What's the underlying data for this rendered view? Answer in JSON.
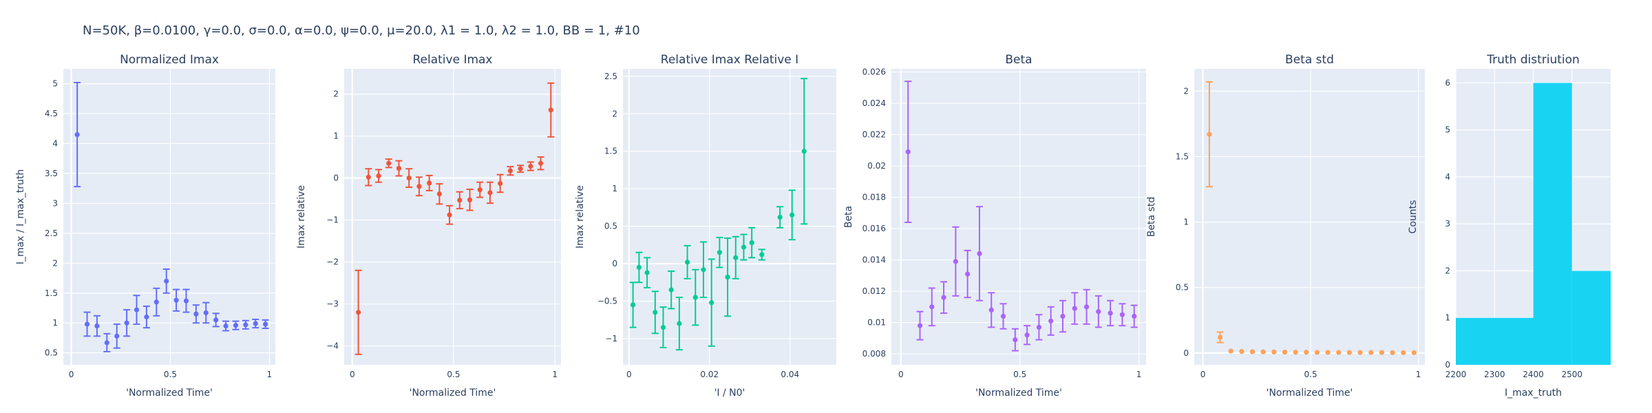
{
  "suptitle": "N=50K, β=0.0100, γ=0.0, σ=0.0,  α=0.0, ψ=0.0, μ=20.0, λ1 = 1.0, λ2 = 1.0, BB = 1, #10",
  "chart_data": [
    {
      "type": "scatter",
      "title": "Normalized Imax",
      "xlabel": "'Normalized Time'",
      "ylabel": "I_max / I_max_truth",
      "color": "#636efa",
      "xlim": [
        -0.04,
        1.03
      ],
      "ylim": [
        0.3,
        5.25
      ],
      "xticks": [
        0,
        0.5,
        1
      ],
      "xticklabels": [
        "0",
        "0.5",
        "1"
      ],
      "yticks": [
        0.5,
        1,
        1.5,
        2,
        2.5,
        3,
        3.5,
        4,
        4.5,
        5
      ],
      "yticklabels": [
        "0.5",
        "1",
        "1.5",
        "2",
        "2.5",
        "3",
        "3.5",
        "4",
        "4.5",
        "5"
      ],
      "points": [
        {
          "x": 0.03,
          "y": 4.15,
          "lo": 3.28,
          "hi": 5.02
        },
        {
          "x": 0.08,
          "y": 0.98,
          "lo": 0.78,
          "hi": 1.18
        },
        {
          "x": 0.13,
          "y": 0.95,
          "lo": 0.78,
          "hi": 1.12
        },
        {
          "x": 0.18,
          "y": 0.67,
          "lo": 0.52,
          "hi": 0.82
        },
        {
          "x": 0.23,
          "y": 0.78,
          "lo": 0.58,
          "hi": 0.98
        },
        {
          "x": 0.28,
          "y": 1.0,
          "lo": 0.78,
          "hi": 1.22
        },
        {
          "x": 0.33,
          "y": 1.22,
          "lo": 0.98,
          "hi": 1.46
        },
        {
          "x": 0.38,
          "y": 1.1,
          "lo": 0.92,
          "hi": 1.28
        },
        {
          "x": 0.43,
          "y": 1.35,
          "lo": 1.12,
          "hi": 1.58
        },
        {
          "x": 0.48,
          "y": 1.7,
          "lo": 1.5,
          "hi": 1.9
        },
        {
          "x": 0.53,
          "y": 1.38,
          "lo": 1.2,
          "hi": 1.56
        },
        {
          "x": 0.58,
          "y": 1.37,
          "lo": 1.18,
          "hi": 1.56
        },
        {
          "x": 0.63,
          "y": 1.15,
          "lo": 1.0,
          "hi": 1.3
        },
        {
          "x": 0.68,
          "y": 1.17,
          "lo": 1.0,
          "hi": 1.34
        },
        {
          "x": 0.73,
          "y": 1.05,
          "lo": 0.94,
          "hi": 1.16
        },
        {
          "x": 0.78,
          "y": 0.95,
          "lo": 0.87,
          "hi": 1.03
        },
        {
          "x": 0.83,
          "y": 0.96,
          "lo": 0.89,
          "hi": 1.03
        },
        {
          "x": 0.88,
          "y": 0.97,
          "lo": 0.9,
          "hi": 1.04
        },
        {
          "x": 0.93,
          "y": 0.99,
          "lo": 0.92,
          "hi": 1.06
        },
        {
          "x": 0.98,
          "y": 0.98,
          "lo": 0.91,
          "hi": 1.05
        }
      ]
    },
    {
      "type": "scatter",
      "title": "Relative Imax",
      "xlabel": "'Normalized Time'",
      "ylabel": "Imax relative",
      "color": "#ef553b",
      "xlim": [
        -0.04,
        1.03
      ],
      "ylim": [
        -4.45,
        2.6
      ],
      "xticks": [
        0,
        0.5,
        1
      ],
      "xticklabels": [
        "0",
        "0.5",
        "1"
      ],
      "yticks": [
        -4,
        -3,
        -2,
        -1,
        0,
        1,
        2
      ],
      "yticklabels": [
        "−4",
        "−3",
        "−2",
        "−1",
        "0",
        "1",
        "2"
      ],
      "points": [
        {
          "x": 0.03,
          "y": -3.2,
          "lo": -4.2,
          "hi": -2.2
        },
        {
          "x": 0.08,
          "y": 0.02,
          "lo": -0.18,
          "hi": 0.22
        },
        {
          "x": 0.13,
          "y": 0.05,
          "lo": -0.1,
          "hi": 0.2
        },
        {
          "x": 0.18,
          "y": 0.35,
          "lo": 0.25,
          "hi": 0.45
        },
        {
          "x": 0.23,
          "y": 0.23,
          "lo": 0.05,
          "hi": 0.41
        },
        {
          "x": 0.28,
          "y": 0.0,
          "lo": -0.22,
          "hi": 0.22
        },
        {
          "x": 0.33,
          "y": -0.2,
          "lo": -0.42,
          "hi": 0.02
        },
        {
          "x": 0.38,
          "y": -0.12,
          "lo": -0.3,
          "hi": 0.06
        },
        {
          "x": 0.43,
          "y": -0.38,
          "lo": -0.62,
          "hi": -0.14
        },
        {
          "x": 0.48,
          "y": -0.88,
          "lo": -1.1,
          "hi": -0.66
        },
        {
          "x": 0.53,
          "y": -0.53,
          "lo": -0.73,
          "hi": -0.33
        },
        {
          "x": 0.58,
          "y": -0.52,
          "lo": -0.77,
          "hi": -0.27
        },
        {
          "x": 0.63,
          "y": -0.28,
          "lo": -0.46,
          "hi": -0.1
        },
        {
          "x": 0.68,
          "y": -0.35,
          "lo": -0.6,
          "hi": -0.1
        },
        {
          "x": 0.73,
          "y": -0.13,
          "lo": -0.34,
          "hi": 0.08
        },
        {
          "x": 0.78,
          "y": 0.17,
          "lo": 0.07,
          "hi": 0.27
        },
        {
          "x": 0.83,
          "y": 0.22,
          "lo": 0.14,
          "hi": 0.3
        },
        {
          "x": 0.88,
          "y": 0.28,
          "lo": 0.18,
          "hi": 0.38
        },
        {
          "x": 0.93,
          "y": 0.35,
          "lo": 0.2,
          "hi": 0.5
        },
        {
          "x": 0.98,
          "y": 1.62,
          "lo": 0.98,
          "hi": 2.26
        }
      ]
    },
    {
      "type": "scatter",
      "title": "Relative Imax Relative I",
      "xlabel": "'I / N0'",
      "ylabel": "Imax relative",
      "color": "#00cc96",
      "xlim": [
        -0.0015,
        0.0515
      ],
      "ylim": [
        -1.35,
        2.6
      ],
      "xticks": [
        0,
        0.02,
        0.04
      ],
      "xticklabels": [
        "0",
        "0.02",
        "0.04"
      ],
      "yticks": [
        -1,
        -0.5,
        0,
        0.5,
        1,
        1.5,
        2,
        2.5
      ],
      "yticklabels": [
        "−1",
        "−0.5",
        "0",
        "0.5",
        "1",
        "1.5",
        "2",
        "2.5"
      ],
      "points": [
        {
          "x": 0.001,
          "y": -0.55,
          "lo": -0.85,
          "hi": -0.25
        },
        {
          "x": 0.0025,
          "y": -0.05,
          "lo": -0.25,
          "hi": 0.15
        },
        {
          "x": 0.0045,
          "y": -0.12,
          "lo": -0.32,
          "hi": 0.08
        },
        {
          "x": 0.0065,
          "y": -0.65,
          "lo": -0.93,
          "hi": -0.37
        },
        {
          "x": 0.0085,
          "y": -0.85,
          "lo": -1.12,
          "hi": -0.58
        },
        {
          "x": 0.0105,
          "y": -0.35,
          "lo": -0.6,
          "hi": -0.1
        },
        {
          "x": 0.0125,
          "y": -0.8,
          "lo": -1.15,
          "hi": -0.45
        },
        {
          "x": 0.0145,
          "y": 0.02,
          "lo": -0.2,
          "hi": 0.24
        },
        {
          "x": 0.0165,
          "y": -0.45,
          "lo": -0.82,
          "hi": -0.08
        },
        {
          "x": 0.0185,
          "y": -0.08,
          "lo": -0.45,
          "hi": 0.29
        },
        {
          "x": 0.0205,
          "y": -0.52,
          "lo": -1.1,
          "hi": 0.06
        },
        {
          "x": 0.0225,
          "y": 0.15,
          "lo": -0.05,
          "hi": 0.35
        },
        {
          "x": 0.0245,
          "y": -0.18,
          "lo": -0.7,
          "hi": 0.34
        },
        {
          "x": 0.0265,
          "y": 0.08,
          "lo": -0.2,
          "hi": 0.36
        },
        {
          "x": 0.0285,
          "y": 0.22,
          "lo": 0.05,
          "hi": 0.39
        },
        {
          "x": 0.0305,
          "y": 0.28,
          "lo": 0.08,
          "hi": 0.48
        },
        {
          "x": 0.033,
          "y": 0.12,
          "lo": 0.05,
          "hi": 0.19
        },
        {
          "x": 0.0375,
          "y": 0.62,
          "lo": 0.48,
          "hi": 0.76
        },
        {
          "x": 0.0405,
          "y": 0.65,
          "lo": 0.32,
          "hi": 0.98
        },
        {
          "x": 0.0435,
          "y": 1.5,
          "lo": 0.53,
          "hi": 2.47
        }
      ]
    },
    {
      "type": "scatter",
      "title": "Beta",
      "xlabel": "'Normalized Time'",
      "ylabel": "Beta",
      "color": "#ab63fa",
      "xlim": [
        -0.04,
        1.03
      ],
      "ylim": [
        0.0073,
        0.0262
      ],
      "xticks": [
        0,
        0.5,
        1
      ],
      "xticklabels": [
        "0",
        "0.5",
        "1"
      ],
      "yticks": [
        0.008,
        0.01,
        0.012,
        0.014,
        0.016,
        0.018,
        0.02,
        0.022,
        0.024,
        0.026
      ],
      "yticklabels": [
        "0.008",
        "0.01",
        "0.012",
        "0.014",
        "0.016",
        "0.018",
        "0.02",
        "0.022",
        "0.024",
        "0.026"
      ],
      "points": [
        {
          "x": 0.03,
          "y": 0.0209,
          "lo": 0.0164,
          "hi": 0.0254
        },
        {
          "x": 0.08,
          "y": 0.0098,
          "lo": 0.0089,
          "hi": 0.0107
        },
        {
          "x": 0.13,
          "y": 0.011,
          "lo": 0.0098,
          "hi": 0.0122
        },
        {
          "x": 0.18,
          "y": 0.0116,
          "lo": 0.0106,
          "hi": 0.0126
        },
        {
          "x": 0.23,
          "y": 0.0139,
          "lo": 0.0117,
          "hi": 0.0161
        },
        {
          "x": 0.28,
          "y": 0.0131,
          "lo": 0.0116,
          "hi": 0.0146
        },
        {
          "x": 0.33,
          "y": 0.0144,
          "lo": 0.0114,
          "hi": 0.0174
        },
        {
          "x": 0.38,
          "y": 0.0108,
          "lo": 0.0097,
          "hi": 0.0119
        },
        {
          "x": 0.43,
          "y": 0.0104,
          "lo": 0.0096,
          "hi": 0.0112
        },
        {
          "x": 0.48,
          "y": 0.0089,
          "lo": 0.0082,
          "hi": 0.0096
        },
        {
          "x": 0.53,
          "y": 0.0092,
          "lo": 0.0086,
          "hi": 0.0098
        },
        {
          "x": 0.58,
          "y": 0.0097,
          "lo": 0.0089,
          "hi": 0.0105
        },
        {
          "x": 0.63,
          "y": 0.0101,
          "lo": 0.0092,
          "hi": 0.011
        },
        {
          "x": 0.68,
          "y": 0.0104,
          "lo": 0.0094,
          "hi": 0.0114
        },
        {
          "x": 0.73,
          "y": 0.0109,
          "lo": 0.0099,
          "hi": 0.0119
        },
        {
          "x": 0.78,
          "y": 0.011,
          "lo": 0.0099,
          "hi": 0.0121
        },
        {
          "x": 0.83,
          "y": 0.0107,
          "lo": 0.0097,
          "hi": 0.0117
        },
        {
          "x": 0.88,
          "y": 0.0106,
          "lo": 0.0098,
          "hi": 0.0114
        },
        {
          "x": 0.93,
          "y": 0.0105,
          "lo": 0.0098,
          "hi": 0.0112
        },
        {
          "x": 0.98,
          "y": 0.0104,
          "lo": 0.0097,
          "hi": 0.0111
        }
      ]
    },
    {
      "type": "scatter",
      "title": "Beta std",
      "xlabel": "'Normalized Time'",
      "ylabel": "Beta std",
      "color": "#ffa15a",
      "xlim": [
        -0.04,
        1.03
      ],
      "ylim": [
        -0.09,
        2.17
      ],
      "xticks": [
        0,
        0.5,
        1
      ],
      "xticklabels": [
        "0",
        "0.5",
        "1"
      ],
      "yticks": [
        0,
        0.5,
        1,
        1.5,
        2
      ],
      "yticklabels": [
        "0",
        "0.5",
        "1",
        "1.5",
        "2"
      ],
      "points": [
        {
          "x": 0.03,
          "y": 1.67,
          "lo": 1.27,
          "hi": 2.07
        },
        {
          "x": 0.08,
          "y": 0.12,
          "lo": 0.08,
          "hi": 0.16
        },
        {
          "x": 0.13,
          "y": 0.015,
          "lo": 0.015,
          "hi": 0.015
        },
        {
          "x": 0.18,
          "y": 0.012,
          "lo": 0.012,
          "hi": 0.012
        },
        {
          "x": 0.23,
          "y": 0.01,
          "lo": 0.01,
          "hi": 0.01
        },
        {
          "x": 0.28,
          "y": 0.009,
          "lo": 0.009,
          "hi": 0.009
        },
        {
          "x": 0.33,
          "y": 0.008,
          "lo": 0.008,
          "hi": 0.008
        },
        {
          "x": 0.38,
          "y": 0.007,
          "lo": 0.007,
          "hi": 0.007
        },
        {
          "x": 0.43,
          "y": 0.006,
          "lo": 0.006,
          "hi": 0.006
        },
        {
          "x": 0.48,
          "y": 0.006,
          "lo": 0.006,
          "hi": 0.006
        },
        {
          "x": 0.53,
          "y": 0.005,
          "lo": 0.005,
          "hi": 0.005
        },
        {
          "x": 0.58,
          "y": 0.005,
          "lo": 0.005,
          "hi": 0.005
        },
        {
          "x": 0.63,
          "y": 0.005,
          "lo": 0.005,
          "hi": 0.005
        },
        {
          "x": 0.68,
          "y": 0.004,
          "lo": 0.004,
          "hi": 0.004
        },
        {
          "x": 0.73,
          "y": 0.004,
          "lo": 0.004,
          "hi": 0.004
        },
        {
          "x": 0.78,
          "y": 0.004,
          "lo": 0.004,
          "hi": 0.004
        },
        {
          "x": 0.83,
          "y": 0.004,
          "lo": 0.004,
          "hi": 0.004
        },
        {
          "x": 0.88,
          "y": 0.003,
          "lo": 0.003,
          "hi": 0.003
        },
        {
          "x": 0.93,
          "y": 0.003,
          "lo": 0.003,
          "hi": 0.003
        },
        {
          "x": 0.98,
          "y": 0.003,
          "lo": 0.003,
          "hi": 0.003
        }
      ]
    },
    {
      "type": "bar",
      "title": "Truth distriution",
      "xlabel": "I_max_truth",
      "ylabel": "Counts",
      "color": "#19d3f3",
      "xlim": [
        2200,
        2600
      ],
      "ylim": [
        0,
        6.3
      ],
      "xticks": [
        2200,
        2300,
        2400,
        2500
      ],
      "xticklabels": [
        "2200",
        "2300",
        "2400",
        "2500"
      ],
      "yticks": [
        0,
        1,
        2,
        3,
        4,
        5,
        6
      ],
      "yticklabels": [
        "0",
        "1",
        "2",
        "3",
        "4",
        "5",
        "6"
      ],
      "bins": [
        {
          "x0": 2200,
          "x1": 2400,
          "count": 1
        },
        {
          "x0": 2400,
          "x1": 2500,
          "count": 6
        },
        {
          "x0": 2500,
          "x1": 2600,
          "count": 2
        }
      ]
    }
  ]
}
